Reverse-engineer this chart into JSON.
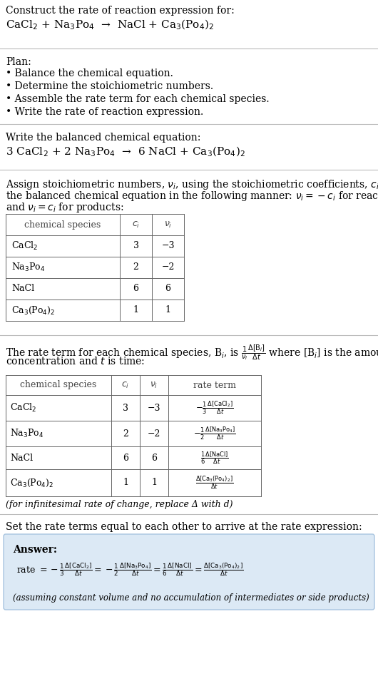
{
  "bg_color": "#ffffff",
  "text_color": "#000000",
  "answer_bg": "#dce9f5",
  "answer_border": "#a8c4e0",
  "rule_color": "#bbbbbb",
  "title_text": "Construct the rate of reaction expression for:",
  "reaction_unbalanced": "CaCl$_2$ + Na$_3$Po$_4$  →  NaCl + Ca$_3$(Po$_4$)$_2$",
  "plan_header": "Plan:",
  "plan_items": [
    "• Balance the chemical equation.",
    "• Determine the stoichiometric numbers.",
    "• Assemble the rate term for each chemical species.",
    "• Write the rate of reaction expression."
  ],
  "balanced_header": "Write the balanced chemical equation:",
  "reaction_balanced": "3 CaCl$_2$ + 2 Na$_3$Po$_4$  →  6 NaCl + Ca$_3$(Po$_4$)$_2$",
  "stoich_intro_lines": [
    "Assign stoichiometric numbers, $\\nu_i$, using the stoichiometric coefficients, $c_i$, from",
    "the balanced chemical equation in the following manner: $\\nu_i = -c_i$ for reactants",
    "and $\\nu_i = c_i$ for products:"
  ],
  "table1_headers": [
    "chemical species",
    "$c_i$",
    "$\\nu_i$"
  ],
  "table1_rows": [
    [
      "CaCl$_2$",
      "3",
      "−3"
    ],
    [
      "Na$_3$Po$_4$",
      "2",
      "−2"
    ],
    [
      "NaCl",
      "6",
      "6"
    ],
    [
      "Ca$_3$(Po$_4$)$_2$",
      "1",
      "1"
    ]
  ],
  "rate_intro_lines": [
    "The rate term for each chemical species, B$_i$, is $\\frac{1}{\\nu_i}\\frac{\\Delta[\\mathrm{B}_i]}{\\Delta t}$ where [B$_i$] is the amount",
    "concentration and $t$ is time:"
  ],
  "table2_headers": [
    "chemical species",
    "$c_i$",
    "$\\nu_i$",
    "rate term"
  ],
  "table2_rows": [
    [
      "CaCl$_2$",
      "3",
      "−3",
      "$-\\frac{1}{3}\\frac{\\Delta[\\mathrm{CaCl}_2]}{\\Delta t}$"
    ],
    [
      "Na$_3$Po$_4$",
      "2",
      "−2",
      "$-\\frac{1}{2}\\frac{\\Delta[\\mathrm{Na}_3\\mathrm{Po}_4]}{\\Delta t}$"
    ],
    [
      "NaCl",
      "6",
      "6",
      "$\\frac{1}{6}\\frac{\\Delta[\\mathrm{NaCl}]}{\\Delta t}$"
    ],
    [
      "Ca$_3$(Po$_4$)$_2$",
      "1",
      "1",
      "$\\frac{\\Delta[\\mathrm{Ca}_3(\\mathrm{Po}_4)_2]}{\\Delta t}$"
    ]
  ],
  "infinitesimal_note": "(for infinitesimal rate of change, replace Δ with d)",
  "set_equal_text": "Set the rate terms equal to each other to arrive at the rate expression:",
  "answer_label": "Answer:",
  "answer_note": "(assuming constant volume and no accumulation of intermediates or side products)"
}
